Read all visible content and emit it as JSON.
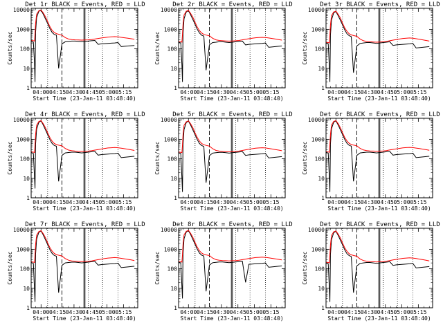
{
  "figure": {
    "colors": {
      "background": "#ffffff",
      "events": "#000000",
      "lld": "#ff0000",
      "axes": "#000000"
    },
    "panel_count": 9
  },
  "chart_data": {
    "type": "line",
    "layout": "3x3 grid",
    "ylabel": "Counts/sec",
    "xlabel": "Start Time (23-Jan-11 03:48:40)",
    "ylog": true,
    "ylim": [
      1,
      12000
    ],
    "xlim": [
      "03:51",
      "05:28"
    ],
    "ytick_labels": [
      "1",
      "10",
      "100",
      "1000",
      "10000"
    ],
    "xtick_labels": [
      "04:00",
      "04:15",
      "04:30",
      "04:45",
      "05:00",
      "05:15"
    ],
    "x_minutes": [
      0,
      2,
      3,
      3.5,
      4,
      5,
      7,
      9,
      11,
      13,
      15,
      17,
      19,
      21,
      23,
      25,
      28,
      31,
      34,
      37,
      40,
      43,
      46,
      49,
      52,
      55,
      58,
      61,
      64,
      67,
      70,
      73,
      76,
      79,
      82,
      85,
      88,
      91,
      94
    ],
    "x_minutes_origin": "03:51",
    "vertical_markers": {
      "dotted": [
        "04:06",
        "04:43",
        "04:56",
        "05:10"
      ],
      "dashed": [
        "04:19"
      ],
      "solid_pair": [
        "04:39",
        "04:40"
      ]
    },
    "panels": [
      {
        "title": "Det 1r BLACK = Events, RED = LLD",
        "series": [
          {
            "color": "#000000",
            "values": [
              250,
              220,
              20,
              2,
              700,
              4000,
              8500,
              9500,
              6000,
              3500,
              2000,
              1100,
              700,
              550,
              500,
              10,
              180,
              230,
              240,
              250,
              250,
              240,
              230,
              240,
              250,
              260,
              270,
              170,
              180,
              185,
              190,
              195,
              200,
              210,
              130,
              135,
              140,
              145,
              150
            ]
          },
          {
            "color": "#ff0000",
            "values": [
              270,
              260,
              250,
              600,
              2000,
              6000,
              9000,
              9800,
              7000,
              4500,
              2500,
              1400,
              900,
              700,
              600,
              560,
              500,
              380,
              320,
              300,
              290,
              285,
              280,
              285,
              290,
              300,
              320,
              340,
              360,
              380,
              400,
              410,
              420,
              410,
              390,
              370,
              350,
              330,
              310
            ]
          }
        ]
      },
      {
        "title": "Det 2r BLACK = Events, RED = LLD",
        "series": [
          {
            "color": "#000000",
            "values": [
              220,
              200,
              15,
              2,
              600,
              3500,
              7800,
              9000,
              5500,
              3200,
              1800,
              1000,
              650,
              500,
              450,
              8,
              160,
              210,
              220,
              230,
              230,
              220,
              210,
              220,
              230,
              240,
              250,
              160,
              170,
              175,
              180,
              185,
              190,
              200,
              120,
              125,
              130,
              135,
              140
            ]
          },
          {
            "color": "#ff0000",
            "values": [
              240,
              230,
              220,
              550,
              1800,
              5500,
              8500,
              9300,
              6500,
              4200,
              2300,
              1300,
              850,
              650,
              550,
              510,
              470,
              350,
              290,
              270,
              260,
              255,
              250,
              255,
              260,
              270,
              290,
              310,
              330,
              350,
              370,
              380,
              390,
              380,
              360,
              340,
              320,
              300,
              280
            ]
          }
        ]
      },
      {
        "title": "Det 3r BLACK = Events, RED = LLD",
        "series": [
          {
            "color": "#000000",
            "values": [
              200,
              180,
              12,
              2,
              500,
              3000,
              7000,
              8200,
              5000,
              3000,
              1700,
              950,
              600,
              480,
              420,
              6,
              140,
              190,
              200,
              210,
              210,
              200,
              190,
              200,
              210,
              220,
              230,
              150,
              160,
              165,
              170,
              175,
              180,
              190,
              110,
              115,
              120,
              125,
              130
            ]
          },
          {
            "color": "#ff0000",
            "values": [
              220,
              210,
              200,
              500,
              1700,
              5000,
              7800,
              8600,
              6000,
              3900,
              2100,
              1200,
              800,
              600,
              520,
              480,
              440,
              320,
              260,
              240,
              230,
              225,
              220,
              225,
              230,
              240,
              260,
              280,
              300,
              320,
              340,
              350,
              360,
              350,
              330,
              310,
              290,
              270,
              250
            ]
          }
        ]
      },
      {
        "title": "Det 4r BLACK = Events, RED = LLD",
        "series": [
          {
            "color": "#000000",
            "values": [
              210,
              190,
              12,
              3,
              550,
              3300,
              7500,
              8800,
              5400,
              3100,
              1750,
              980,
              620,
              490,
              440,
              7,
              150,
              200,
              210,
              220,
              220,
              210,
              200,
              210,
              220,
              230,
              240,
              155,
              165,
              170,
              175,
              180,
              185,
              195,
              115,
              120,
              125,
              130,
              135
            ]
          },
          {
            "color": "#ff0000",
            "values": [
              230,
              220,
              210,
              520,
              1750,
              5300,
              8200,
              9100,
              6300,
              4000,
              2200,
              1250,
              820,
              620,
              540,
              500,
              460,
              340,
              280,
              260,
              250,
              245,
              240,
              245,
              250,
              260,
              280,
              300,
              320,
              340,
              360,
              370,
              380,
              370,
              350,
              330,
              310,
              290,
              270
            ]
          }
        ]
      },
      {
        "title": "Det 5r BLACK = Events, RED = LLD",
        "series": [
          {
            "color": "#000000",
            "values": [
              205,
              185,
              10,
              2,
              530,
              3200,
              7300,
              8600,
              5300,
              3050,
              1720,
              960,
              610,
              485,
              430,
              6,
              145,
              195,
              205,
              215,
              215,
              205,
              195,
              205,
              215,
              225,
              235,
              150,
              160,
              165,
              170,
              175,
              180,
              190,
              110,
              115,
              120,
              125,
              130
            ]
          },
          {
            "color": "#ff0000",
            "values": [
              225,
              215,
              205,
              510,
              1720,
              5200,
              8000,
              8900,
              6200,
              3950,
              2150,
              1230,
              810,
              610,
              530,
              490,
              450,
              330,
              270,
              250,
              240,
              235,
              230,
              235,
              240,
              250,
              270,
              290,
              310,
              330,
              350,
              360,
              370,
              360,
              340,
              320,
              300,
              280,
              260
            ]
          }
        ]
      },
      {
        "title": "Det 6r BLACK = Events, RED = LLD",
        "series": [
          {
            "color": "#000000",
            "values": [
              215,
              195,
              11,
              2,
              560,
              3400,
              7600,
              8900,
              5500,
              3150,
              1780,
              990,
              630,
              495,
              445,
              7,
              150,
              200,
              210,
              220,
              220,
              210,
              200,
              210,
              220,
              230,
              240,
              155,
              165,
              170,
              175,
              180,
              185,
              195,
              115,
              120,
              125,
              130,
              135
            ]
          },
          {
            "color": "#ff0000",
            "values": [
              235,
              225,
              215,
              530,
              1780,
              5400,
              8300,
              9200,
              6400,
              4050,
              2220,
              1260,
              830,
              630,
              545,
              505,
              465,
              345,
              285,
              265,
              255,
              250,
              245,
              250,
              255,
              265,
              285,
              305,
              325,
              345,
              365,
              375,
              385,
              375,
              355,
              335,
              315,
              295,
              275
            ]
          }
        ]
      },
      {
        "title": "Det 7r BLACK = Events, RED = LLD",
        "series": [
          {
            "color": "#000000",
            "values": [
              210,
              190,
              9,
              2,
              540,
              3300,
              7400,
              8700,
              5400,
              3100,
              1740,
              970,
              620,
              490,
              435,
              6,
              150,
              200,
              210,
              220,
              220,
              210,
              200,
              210,
              220,
              230,
              240,
              155,
              165,
              170,
              175,
              180,
              185,
              195,
              115,
              120,
              125,
              130,
              135
            ]
          },
          {
            "color": "#ff0000",
            "values": [
              230,
              220,
              210,
              520,
              1740,
              5300,
              8100,
              9000,
              6300,
              4000,
              2180,
              1240,
              820,
              620,
              535,
              495,
              455,
              335,
              275,
              255,
              245,
              240,
              235,
              240,
              245,
              255,
              275,
              295,
              315,
              335,
              355,
              365,
              375,
              365,
              345,
              325,
              305,
              285,
              265
            ]
          }
        ]
      },
      {
        "title": "Det 8r BLACK = Events, RED = LLD",
        "series": [
          {
            "color": "#000000",
            "values": [
              220,
              200,
              12,
              3,
              580,
              3500,
              7700,
              9000,
              5600,
              3200,
              1800,
              1000,
              640,
              500,
              450,
              7,
              155,
              205,
              215,
              225,
              225,
              215,
              205,
              215,
              225,
              235,
              245,
              20,
              170,
              175,
              180,
              185,
              190,
              200,
              120,
              125,
              130,
              135,
              140
            ]
          },
          {
            "color": "#ff0000",
            "values": [
              240,
              230,
              220,
              540,
              1800,
              5500,
              8400,
              9300,
              6500,
              4100,
              2250,
              1280,
              840,
              640,
              555,
              515,
              475,
              355,
              295,
              275,
              265,
              260,
              255,
              260,
              265,
              275,
              295,
              315,
              335,
              355,
              375,
              385,
              395,
              385,
              365,
              345,
              325,
              305,
              285
            ]
          }
        ]
      },
      {
        "title": "Det 9r BLACK = Events, RED = LLD",
        "series": [
          {
            "color": "#000000",
            "values": [
              200,
              180,
              10,
              2,
              520,
              3100,
              7100,
              8400,
              5200,
              3000,
              1700,
              950,
              600,
              480,
              425,
              6,
              140,
              190,
              200,
              210,
              210,
              200,
              190,
              200,
              210,
              220,
              230,
              150,
              160,
              165,
              170,
              175,
              180,
              190,
              110,
              115,
              120,
              125,
              130
            ]
          },
          {
            "color": "#ff0000",
            "values": [
              220,
              210,
              200,
              500,
              1700,
              5100,
              7900,
              8700,
              6100,
              3900,
              2120,
              1210,
              800,
              600,
              520,
              480,
              440,
              320,
              265,
              245,
              235,
              230,
              225,
              230,
              235,
              245,
              265,
              285,
              305,
              325,
              345,
              355,
              365,
              355,
              335,
              315,
              295,
              275,
              255
            ]
          }
        ]
      }
    ]
  }
}
